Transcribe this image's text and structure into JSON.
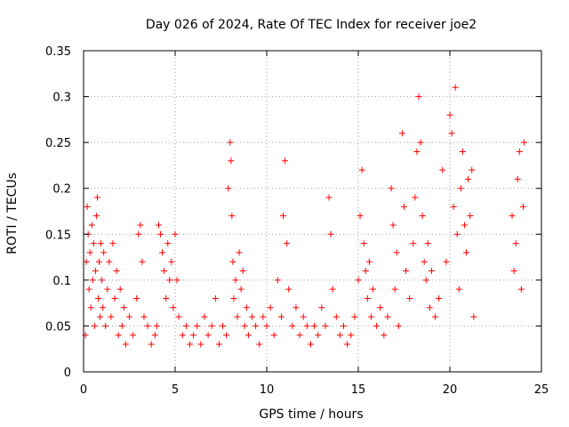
{
  "chart_data": {
    "type": "scatter",
    "title": "Day 026 of 2024, Rate Of TEC Index for receiver joe2",
    "xlabel": "GPS time / hours",
    "ylabel": "ROTI / TECUs",
    "xlim": [
      0,
      25
    ],
    "ylim": [
      0,
      0.35
    ],
    "x_ticks": [
      0,
      5,
      10,
      15,
      20,
      25
    ],
    "x_tick_labels": [
      "0",
      "5",
      "10",
      "15",
      "20",
      "25"
    ],
    "y_ticks": [
      0,
      0.05,
      0.1,
      0.15,
      0.2,
      0.25,
      0.3,
      0.35
    ],
    "y_tick_labels": [
      "0",
      "0.05",
      "0.1",
      "0.15",
      "0.2",
      "0.25",
      "0.3",
      "0.35"
    ],
    "grid": true,
    "marker": "+",
    "color": "#ff0000",
    "series": [
      {
        "points": [
          [
            0.1,
            0.04
          ],
          [
            0.15,
            0.12
          ],
          [
            0.2,
            0.18
          ],
          [
            0.25,
            0.15
          ],
          [
            0.3,
            0.09
          ],
          [
            0.35,
            0.13
          ],
          [
            0.4,
            0.07
          ],
          [
            0.45,
            0.16
          ],
          [
            0.5,
            0.1
          ],
          [
            0.55,
            0.14
          ],
          [
            0.6,
            0.05
          ],
          [
            0.65,
            0.11
          ],
          [
            0.7,
            0.17
          ],
          [
            0.75,
            0.19
          ],
          [
            0.8,
            0.08
          ],
          [
            0.85,
            0.12
          ],
          [
            0.9,
            0.06
          ],
          [
            0.95,
            0.14
          ],
          [
            1.0,
            0.1
          ],
          [
            1.05,
            0.07
          ],
          [
            1.1,
            0.13
          ],
          [
            1.2,
            0.05
          ],
          [
            1.3,
            0.09
          ],
          [
            1.4,
            0.12
          ],
          [
            1.5,
            0.06
          ],
          [
            1.6,
            0.14
          ],
          [
            1.7,
            0.08
          ],
          [
            1.8,
            0.11
          ],
          [
            1.9,
            0.04
          ],
          [
            2.0,
            0.09
          ],
          [
            2.1,
            0.05
          ],
          [
            2.2,
            0.07
          ],
          [
            2.3,
            0.03
          ],
          [
            2.5,
            0.06
          ],
          [
            2.7,
            0.04
          ],
          [
            2.9,
            0.08
          ],
          [
            3.0,
            0.15
          ],
          [
            3.1,
            0.16
          ],
          [
            3.2,
            0.12
          ],
          [
            3.3,
            0.06
          ],
          [
            3.5,
            0.05
          ],
          [
            3.7,
            0.03
          ],
          [
            3.9,
            0.04
          ],
          [
            4.0,
            0.05
          ],
          [
            4.1,
            0.16
          ],
          [
            4.2,
            0.15
          ],
          [
            4.3,
            0.13
          ],
          [
            4.4,
            0.11
          ],
          [
            4.5,
            0.08
          ],
          [
            4.6,
            0.14
          ],
          [
            4.7,
            0.1
          ],
          [
            4.8,
            0.12
          ],
          [
            4.9,
            0.07
          ],
          [
            5.0,
            0.15
          ],
          [
            5.1,
            0.1
          ],
          [
            5.2,
            0.06
          ],
          [
            5.4,
            0.04
          ],
          [
            5.6,
            0.05
          ],
          [
            5.8,
            0.03
          ],
          [
            6.0,
            0.04
          ],
          [
            6.2,
            0.05
          ],
          [
            6.4,
            0.03
          ],
          [
            6.6,
            0.06
          ],
          [
            6.8,
            0.04
          ],
          [
            7.0,
            0.05
          ],
          [
            7.2,
            0.08
          ],
          [
            7.4,
            0.03
          ],
          [
            7.6,
            0.05
          ],
          [
            7.8,
            0.04
          ],
          [
            7.9,
            0.2
          ],
          [
            8.0,
            0.25
          ],
          [
            8.05,
            0.23
          ],
          [
            8.1,
            0.17
          ],
          [
            8.15,
            0.12
          ],
          [
            8.2,
            0.08
          ],
          [
            8.3,
            0.1
          ],
          [
            8.4,
            0.06
          ],
          [
            8.5,
            0.13
          ],
          [
            8.6,
            0.09
          ],
          [
            8.7,
            0.11
          ],
          [
            8.8,
            0.05
          ],
          [
            8.9,
            0.07
          ],
          [
            9.0,
            0.04
          ],
          [
            9.2,
            0.06
          ],
          [
            9.4,
            0.05
          ],
          [
            9.6,
            0.03
          ],
          [
            9.8,
            0.06
          ],
          [
            10.0,
            0.05
          ],
          [
            10.2,
            0.07
          ],
          [
            10.4,
            0.04
          ],
          [
            10.6,
            0.1
          ],
          [
            10.8,
            0.06
          ],
          [
            10.9,
            0.17
          ],
          [
            11.0,
            0.23
          ],
          [
            11.1,
            0.14
          ],
          [
            11.2,
            0.09
          ],
          [
            11.4,
            0.05
          ],
          [
            11.6,
            0.07
          ],
          [
            11.8,
            0.04
          ],
          [
            12.0,
            0.06
          ],
          [
            12.2,
            0.05
          ],
          [
            12.4,
            0.03
          ],
          [
            12.6,
            0.05
          ],
          [
            12.8,
            0.04
          ],
          [
            13.0,
            0.07
          ],
          [
            13.2,
            0.05
          ],
          [
            13.4,
            0.19
          ],
          [
            13.5,
            0.15
          ],
          [
            13.6,
            0.09
          ],
          [
            13.8,
            0.06
          ],
          [
            14.0,
            0.04
          ],
          [
            14.2,
            0.05
          ],
          [
            14.4,
            0.03
          ],
          [
            14.6,
            0.04
          ],
          [
            14.8,
            0.06
          ],
          [
            15.0,
            0.1
          ],
          [
            15.1,
            0.17
          ],
          [
            15.2,
            0.22
          ],
          [
            15.3,
            0.14
          ],
          [
            15.4,
            0.11
          ],
          [
            15.5,
            0.08
          ],
          [
            15.6,
            0.12
          ],
          [
            15.7,
            0.06
          ],
          [
            15.8,
            0.09
          ],
          [
            16.0,
            0.05
          ],
          [
            16.2,
            0.07
          ],
          [
            16.4,
            0.04
          ],
          [
            16.6,
            0.06
          ],
          [
            16.8,
            0.2
          ],
          [
            16.9,
            0.16
          ],
          [
            17.0,
            0.09
          ],
          [
            17.1,
            0.13
          ],
          [
            17.2,
            0.05
          ],
          [
            17.4,
            0.26
          ],
          [
            17.5,
            0.18
          ],
          [
            17.6,
            0.11
          ],
          [
            17.8,
            0.08
          ],
          [
            18.0,
            0.14
          ],
          [
            18.1,
            0.19
          ],
          [
            18.2,
            0.24
          ],
          [
            18.3,
            0.3
          ],
          [
            18.4,
            0.25
          ],
          [
            18.5,
            0.17
          ],
          [
            18.6,
            0.12
          ],
          [
            18.7,
            0.1
          ],
          [
            18.8,
            0.14
          ],
          [
            18.9,
            0.07
          ],
          [
            19.0,
            0.11
          ],
          [
            19.2,
            0.06
          ],
          [
            19.4,
            0.08
          ],
          [
            19.6,
            0.22
          ],
          [
            19.8,
            0.12
          ],
          [
            20.0,
            0.28
          ],
          [
            20.1,
            0.26
          ],
          [
            20.2,
            0.18
          ],
          [
            20.3,
            0.31
          ],
          [
            20.4,
            0.15
          ],
          [
            20.5,
            0.09
          ],
          [
            20.6,
            0.2
          ],
          [
            20.7,
            0.24
          ],
          [
            20.8,
            0.16
          ],
          [
            20.9,
            0.13
          ],
          [
            21.0,
            0.21
          ],
          [
            21.1,
            0.17
          ],
          [
            21.2,
            0.22
          ],
          [
            21.3,
            0.06
          ],
          [
            23.4,
            0.17
          ],
          [
            23.5,
            0.11
          ],
          [
            23.6,
            0.14
          ],
          [
            23.7,
            0.21
          ],
          [
            23.8,
            0.24
          ],
          [
            23.9,
            0.09
          ],
          [
            24.0,
            0.18
          ],
          [
            24.05,
            0.25
          ]
        ]
      }
    ]
  }
}
